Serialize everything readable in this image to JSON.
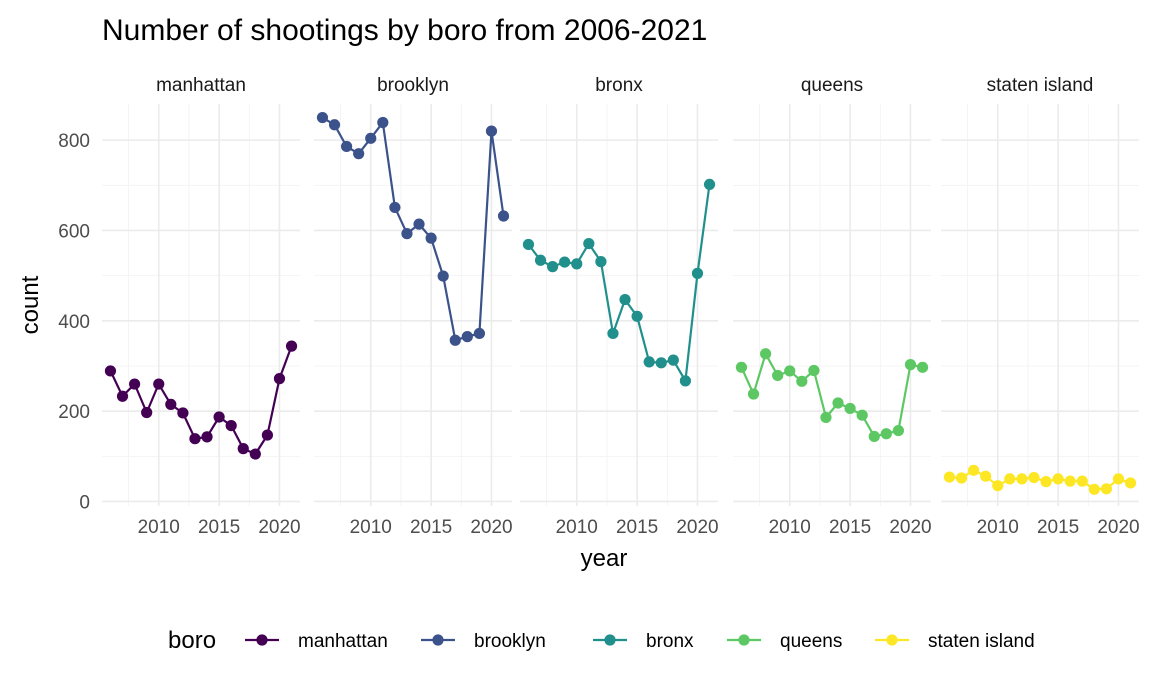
{
  "chart_data": {
    "type": "line",
    "title": "Number of shootings by boro from 2006-2021",
    "xlabel": "year",
    "ylabel": "count",
    "x": [
      2006,
      2007,
      2008,
      2009,
      2010,
      2011,
      2012,
      2013,
      2014,
      2015,
      2016,
      2017,
      2018,
      2019,
      2020,
      2021
    ],
    "xlim": [
      2005.3,
      2021.7
    ],
    "ylim": [
      -10,
      880
    ],
    "x_ticks": [
      2010,
      2015,
      2020
    ],
    "x_tick_labels": [
      "2010",
      "2015",
      "2020"
    ],
    "y_ticks": [
      0,
      200,
      400,
      600,
      800
    ],
    "y_tick_labels": [
      "0",
      "200",
      "400",
      "600",
      "800"
    ],
    "facet_by": "boro",
    "grid": true,
    "legend_title": "boro",
    "legend_position": "bottom",
    "series": [
      {
        "name": "manhattan",
        "color": "#440154",
        "values": [
          289,
          233,
          260,
          197,
          260,
          215,
          196,
          139,
          143,
          187,
          168,
          117,
          105,
          147,
          272,
          344
        ]
      },
      {
        "name": "brooklyn",
        "color": "#3B528B",
        "values": [
          850,
          834,
          786,
          770,
          804,
          839,
          651,
          593,
          614,
          583,
          499,
          357,
          365,
          372,
          820,
          632
        ]
      },
      {
        "name": "bronx",
        "color": "#21908C",
        "values": [
          569,
          534,
          520,
          530,
          526,
          571,
          531,
          372,
          447,
          410,
          309,
          307,
          313,
          267,
          505,
          702
        ]
      },
      {
        "name": "queens",
        "color": "#5DC863",
        "values": [
          297,
          238,
          327,
          279,
          289,
          266,
          290,
          186,
          218,
          206,
          191,
          144,
          150,
          157,
          303,
          297
        ]
      },
      {
        "name": "staten island",
        "color": "#FDE725",
        "values": [
          54,
          52,
          69,
          56,
          35,
          50,
          50,
          53,
          44,
          50,
          45,
          45,
          27,
          28,
          50,
          41
        ]
      }
    ]
  }
}
